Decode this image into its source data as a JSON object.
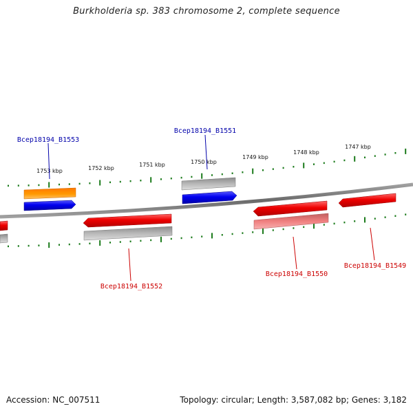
{
  "title": "Burkholderia sp. 383 chromosome 2, complete sequence",
  "footer": {
    "accession": "Accession: NC_007511",
    "summary": "Topology: circular; Length: 3,587,082 bp; Genes: 3,182"
  },
  "colors": {
    "backbone": "#808080",
    "ticks": "#1a7a1a",
    "forward_red": "#ee0000",
    "light_red": "#f08080",
    "blue": "#0000ee",
    "orange": "#ff9900",
    "gray": "#b0b0b0",
    "label_blue": "#0000aa",
    "label_red": "#cc0000"
  },
  "scale_labels": [
    "1753 kbp",
    "1752 kbp",
    "1751 kbp",
    "1750 kbp",
    "1749 kbp",
    "1748 kbp",
    "1747 kbp"
  ],
  "genes": [
    {
      "label": "Bcep18194_B1553",
      "color": "blue"
    },
    {
      "label": "Bcep18194_B1551",
      "color": "blue"
    },
    {
      "label": "Bcep18194_B1552",
      "color": "red"
    },
    {
      "label": "Bcep18194_B1550",
      "color": "red"
    },
    {
      "label": "Bcep18194_B1549",
      "color": "red"
    }
  ]
}
